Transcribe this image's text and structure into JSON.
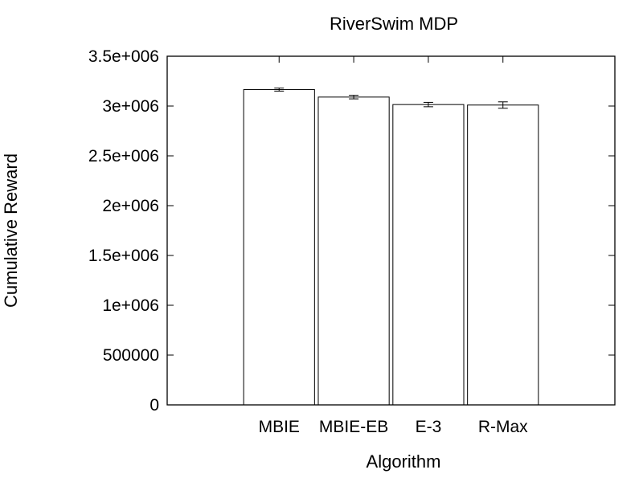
{
  "chart_data": {
    "type": "bar",
    "title": "RiverSwim MDP",
    "xlabel": "Algorithm",
    "ylabel": "Cumulative Reward",
    "categories": [
      "MBIE",
      "MBIE-EB",
      "E-3",
      "R-Max"
    ],
    "values": [
      3165000,
      3090000,
      3015000,
      3010000
    ],
    "errors": [
      15000,
      18000,
      22000,
      32000
    ],
    "ylim": [
      0,
      3500000
    ],
    "yticks": [
      0,
      500000,
      1000000,
      1500000,
      2000000,
      2500000,
      3000000,
      3500000
    ],
    "ytick_labels": [
      "0",
      "500000",
      "1e+006",
      "1.5e+006",
      "2e+006",
      "2.5e+006",
      "3e+006",
      "3.5e+006"
    ],
    "grid": false,
    "colors": {
      "bar_fill": "#ffffff",
      "bar_stroke": "#000000"
    }
  }
}
